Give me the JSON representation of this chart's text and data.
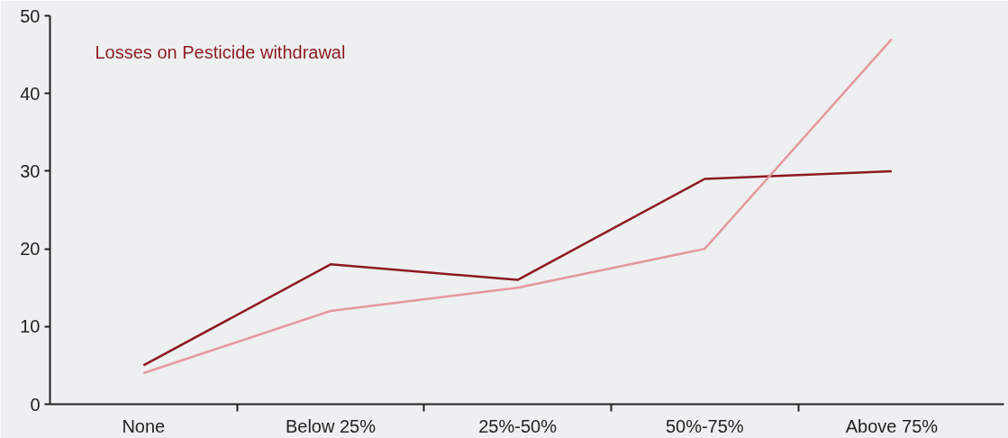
{
  "chart_data": {
    "type": "line",
    "categories": [
      "None",
      "Below 25%",
      "25%-50%",
      "50%-75%",
      "Above 75%"
    ],
    "series": [
      {
        "name": "Losses on Pesticide withdrawal",
        "color": "#8b1a1f",
        "values": [
          5,
          18,
          16,
          29,
          30
        ]
      },
      {
        "color": "#e39a9c",
        "values": [
          4,
          12,
          15,
          20,
          47
        ]
      }
    ],
    "ylim": [
      0,
      50
    ],
    "yticks": [
      0,
      10,
      20,
      30,
      40,
      50
    ],
    "grid": false,
    "marker": "none",
    "line_style": "solid"
  }
}
